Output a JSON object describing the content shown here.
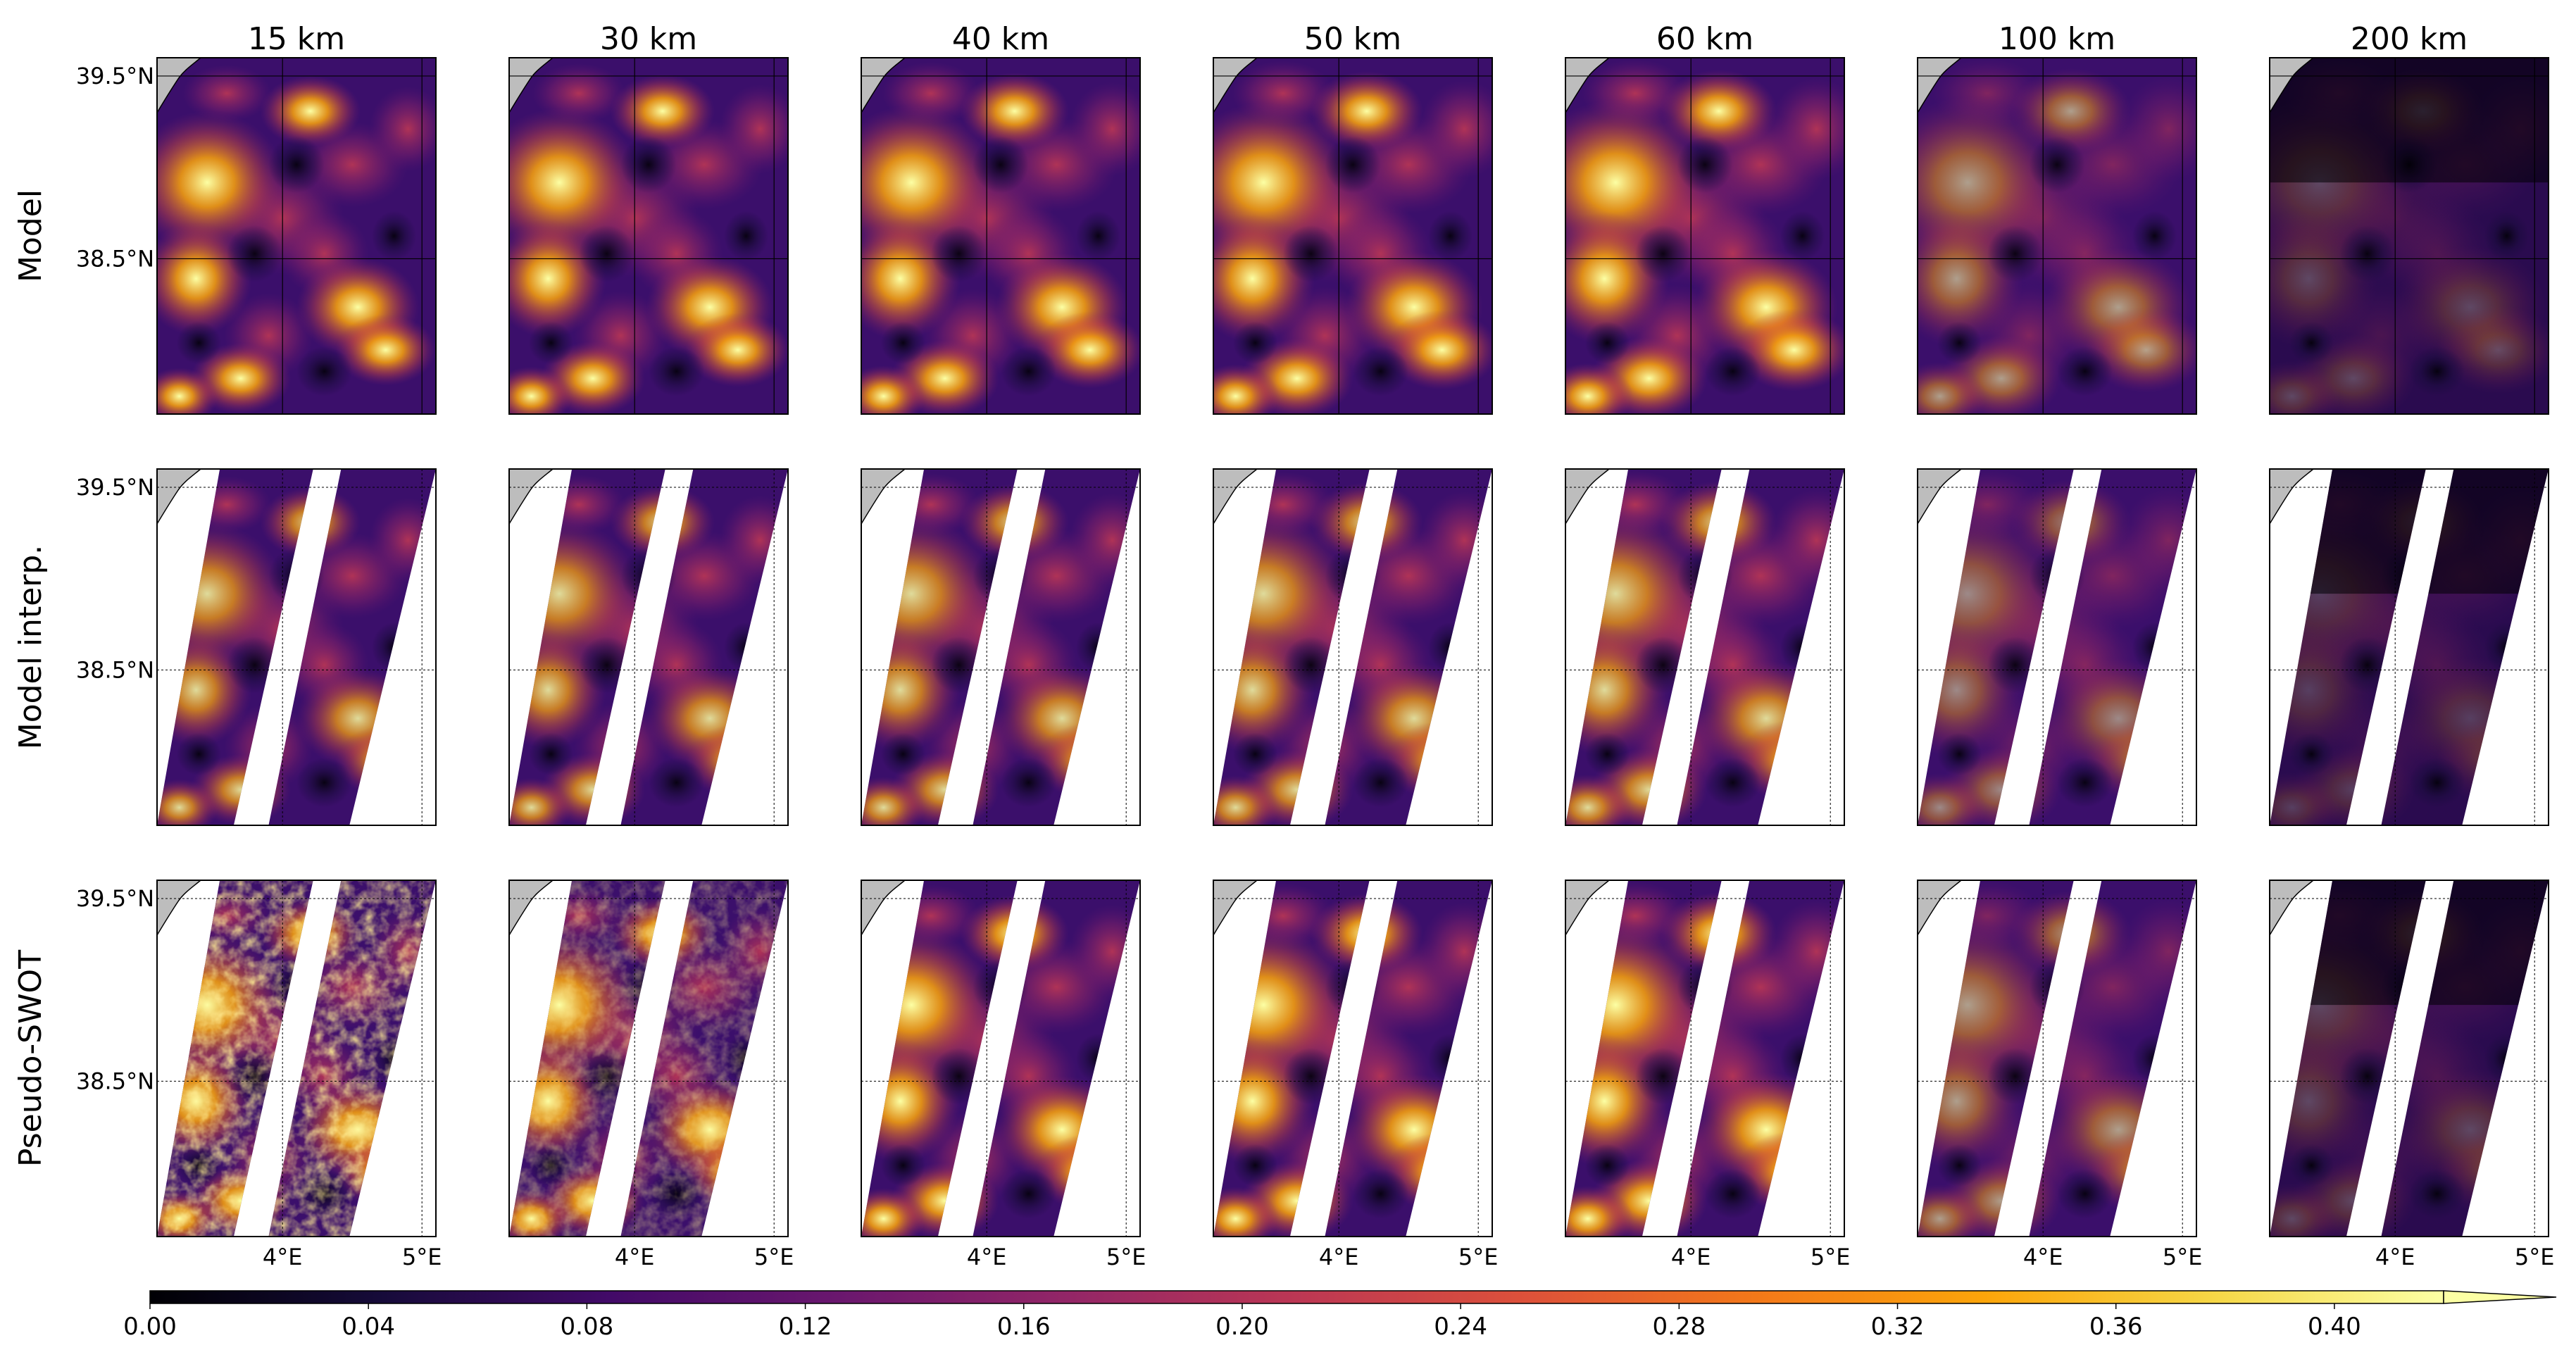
{
  "chart_data": {
    "type": "heatmap",
    "title": "",
    "columns": [
      "15 km",
      "30 km",
      "40 km",
      "50 km",
      "60 km",
      "100 km",
      "200 km"
    ],
    "rows": [
      "Model",
      "Model interp.",
      "Pseudo-SWOT"
    ],
    "lat_ticks": [
      "39.5°N",
      "38.5°N"
    ],
    "lon_ticks": [
      "4°E",
      "5°E"
    ],
    "lat_range": [
      37.65,
      39.6
    ],
    "lon_range": [
      3.1,
      5.1
    ],
    "colorbar": {
      "ticks": [
        "0.00",
        "0.04",
        "0.08",
        "0.12",
        "0.16",
        "0.20",
        "0.24",
        "0.28",
        "0.32",
        "0.36",
        "0.40"
      ],
      "range": [
        0.0,
        0.42
      ],
      "extend": "max",
      "colormap": "inferno"
    },
    "land_color": "#bdbdbd"
  }
}
